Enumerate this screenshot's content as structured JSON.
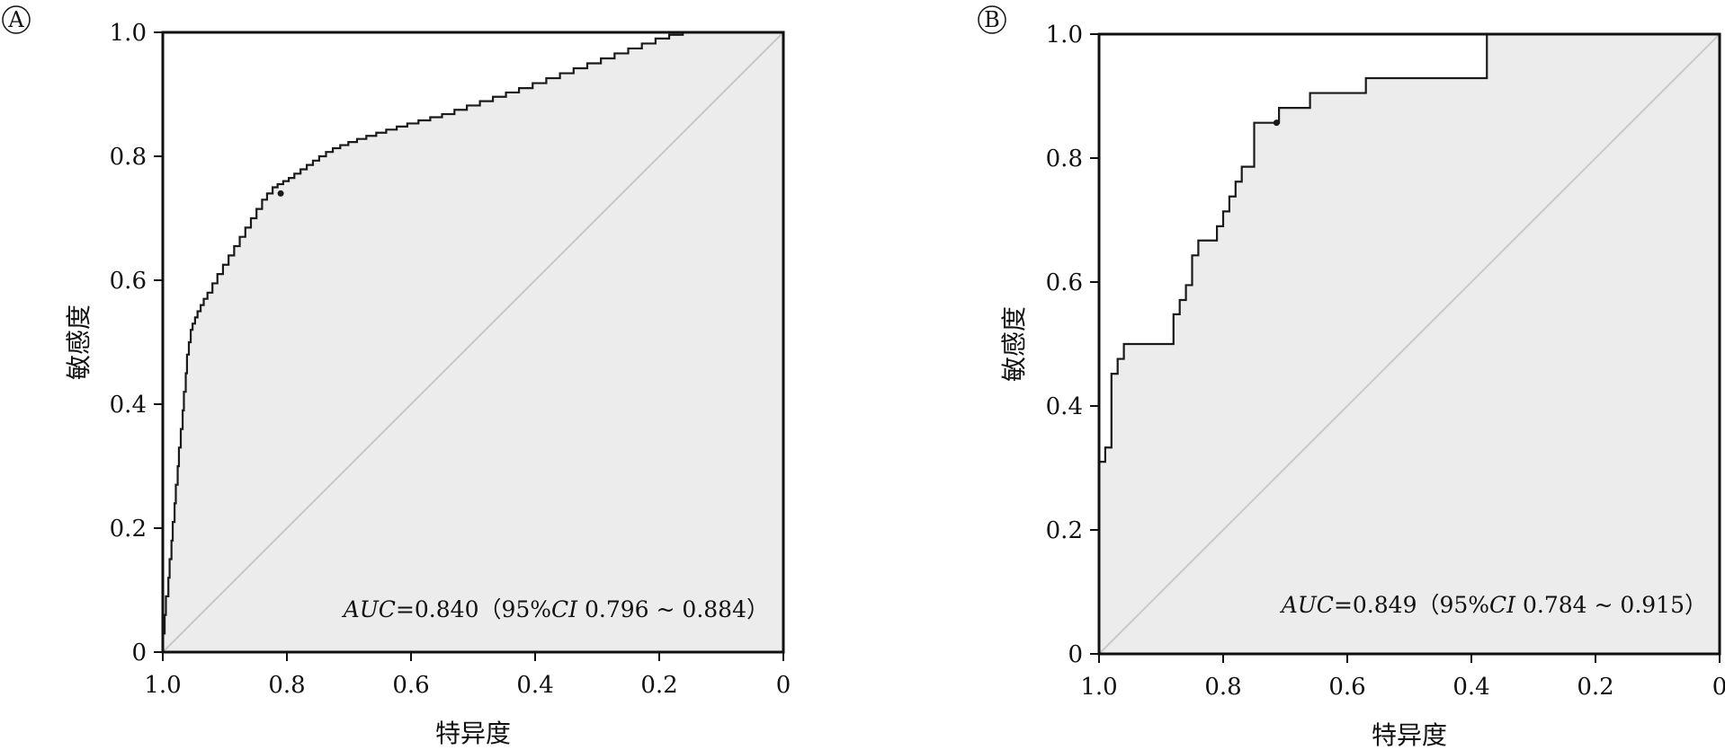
{
  "figure": {
    "panels": [
      "A",
      "B"
    ]
  },
  "colors": {
    "plot_background": "#ececec",
    "roc_line": "#1a1a1a",
    "diagonal": "#c8c8c8",
    "frame": "#111111"
  },
  "chart_data": [
    {
      "type": "line",
      "panel_label": "A",
      "xlabel": "特异度",
      "ylabel": "敏感度",
      "x_reversed": true,
      "xlim": [
        1.0,
        0
      ],
      "ylim": [
        0,
        1.0
      ],
      "x_ticks": [
        1.0,
        0.8,
        0.6,
        0.4,
        0.2,
        0
      ],
      "x_tick_labels": [
        "1.0",
        "0.8",
        "0.6",
        "0.4",
        "0.2",
        "0"
      ],
      "y_ticks": [
        0,
        0.2,
        0.4,
        0.6,
        0.8,
        1.0
      ],
      "y_tick_labels": [
        "0",
        "0.2",
        "0.4",
        "0.6",
        "0.8",
        "1.0"
      ],
      "grid": false,
      "annotation": {
        "auc_label": "AUC",
        "auc_value": "=0.840（95%",
        "ci_label": "CI",
        "ci_range": " 0.796 ~ 0.884）"
      },
      "reference_line": [
        [
          1.0,
          0
        ],
        [
          0,
          1.0
        ]
      ],
      "optimal_point": {
        "x": 0.81,
        "y": 0.74
      },
      "series": [
        {
          "x": [
            1.0,
            0.997,
            0.995,
            0.991,
            0.989,
            0.986,
            0.984,
            0.981,
            0.979,
            0.976,
            0.974,
            0.971,
            0.968,
            0.966,
            0.963,
            0.961,
            0.958,
            0.955,
            0.952,
            0.948,
            0.944,
            0.939,
            0.934,
            0.928,
            0.92,
            0.912,
            0.903,
            0.894,
            0.885,
            0.876,
            0.867,
            0.858,
            0.849,
            0.84,
            0.832,
            0.823,
            0.815,
            0.806,
            0.797,
            0.788,
            0.778,
            0.768,
            0.758,
            0.748,
            0.737,
            0.726,
            0.714,
            0.701,
            0.687,
            0.672,
            0.656,
            0.64,
            0.623,
            0.606,
            0.588,
            0.569,
            0.55,
            0.53,
            0.51,
            0.489,
            0.468,
            0.447,
            0.426,
            0.404,
            0.382,
            0.36,
            0.338,
            0.316,
            0.294,
            0.272,
            0.25,
            0.228,
            0.206,
            0.184,
            0.162,
            0.15,
            0.14,
            0.1,
            0.06,
            0.03,
            0
          ],
          "y": [
            0,
            0.03,
            0.06,
            0.09,
            0.12,
            0.15,
            0.18,
            0.21,
            0.24,
            0.27,
            0.3,
            0.33,
            0.36,
            0.39,
            0.42,
            0.45,
            0.48,
            0.5,
            0.52,
            0.53,
            0.54,
            0.55,
            0.56,
            0.57,
            0.58,
            0.595,
            0.61,
            0.625,
            0.64,
            0.655,
            0.67,
            0.685,
            0.7,
            0.715,
            0.73,
            0.74,
            0.75,
            0.755,
            0.76,
            0.765,
            0.772,
            0.779,
            0.786,
            0.793,
            0.8,
            0.807,
            0.813,
            0.818,
            0.823,
            0.828,
            0.833,
            0.838,
            0.843,
            0.848,
            0.853,
            0.858,
            0.863,
            0.868,
            0.875,
            0.882,
            0.889,
            0.896,
            0.903,
            0.91,
            0.918,
            0.926,
            0.934,
            0.942,
            0.95,
            0.958,
            0.966,
            0.974,
            0.982,
            0.99,
            0.996,
            1.0,
            1.0,
            1.0,
            1.0,
            1.0,
            1.0
          ]
        }
      ]
    },
    {
      "type": "line",
      "panel_label": "B",
      "xlabel": "特异度",
      "ylabel": "敏感度",
      "x_reversed": true,
      "xlim": [
        1.0,
        0
      ],
      "ylim": [
        0,
        1.0
      ],
      "x_ticks": [
        1.0,
        0.8,
        0.6,
        0.4,
        0.2,
        0
      ],
      "x_tick_labels": [
        "1.0",
        "0.8",
        "0.6",
        "0.4",
        "0.2",
        "0"
      ],
      "y_ticks": [
        0,
        0.2,
        0.4,
        0.6,
        0.8,
        1.0
      ],
      "y_tick_labels": [
        "0",
        "0.2",
        "0.4",
        "0.6",
        "0.8",
        "1.0"
      ],
      "grid": false,
      "annotation": {
        "auc_label": "AUC",
        "auc_value": "=0.849（95%",
        "ci_label": "CI",
        "ci_range": " 0.784 ~ 0.915）"
      },
      "reference_line": [
        [
          1.0,
          0
        ],
        [
          0,
          1.0
        ]
      ],
      "optimal_point": {
        "x": 0.714,
        "y": 0.857
      },
      "series": [
        {
          "x": [
            1.0,
            1.0,
            0.99,
            0.98,
            0.97,
            0.96,
            0.94,
            0.92,
            0.9,
            0.88,
            0.87,
            0.86,
            0.85,
            0.84,
            0.83,
            0.81,
            0.8,
            0.79,
            0.78,
            0.77,
            0.75,
            0.71,
            0.66,
            0.61,
            0.57,
            0.52,
            0.47,
            0.43,
            0.375,
            0.375,
            0.3,
            0.2,
            0.1,
            0
          ],
          "y": [
            0,
            0.238,
            0.31,
            0.333,
            0.452,
            0.476,
            0.5,
            0.5,
            0.5,
            0.5,
            0.548,
            0.571,
            0.595,
            0.643,
            0.667,
            0.667,
            0.69,
            0.714,
            0.738,
            0.762,
            0.786,
            0.857,
            0.881,
            0.905,
            0.905,
            0.929,
            0.929,
            0.929,
            0.929,
            1.0,
            1.0,
            1.0,
            1.0,
            1.0
          ]
        }
      ]
    }
  ]
}
